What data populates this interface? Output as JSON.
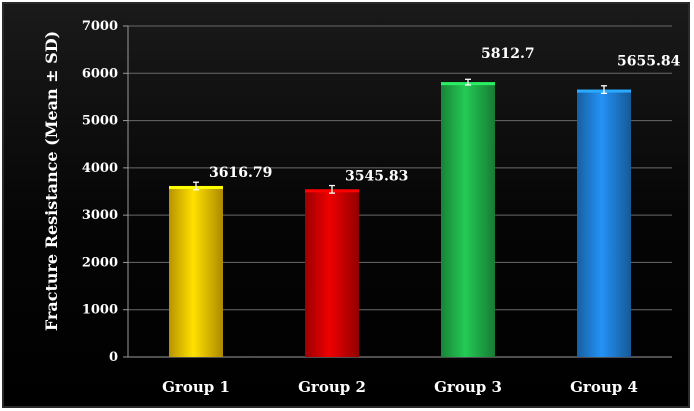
{
  "chart_data": {
    "type": "bar",
    "title": "",
    "xlabel": "",
    "ylabel": "Fracture Resistance (Mean ± SD)",
    "categories": [
      "Group 1",
      "Group 2",
      "Group 3",
      "Group 4"
    ],
    "values": [
      3616.79,
      3545.83,
      5812.7,
      5655.84
    ],
    "data_labels": [
      "3616.79",
      "3545.83",
      "5812.7",
      "5655.84"
    ],
    "error": [
      80,
      80,
      60,
      80
    ],
    "colors": [
      "#f5c400",
      "#d00000",
      "#1fb04a",
      "#1f7fd6"
    ],
    "ylim": [
      0,
      7000
    ],
    "yticks": [
      0,
      1000,
      2000,
      3000,
      4000,
      5000,
      6000,
      7000
    ],
    "ytick_labels": [
      "0",
      "1000",
      "2000",
      "3000",
      "4000",
      "5000",
      "6000",
      "7000"
    ],
    "grid": true,
    "legend": "none",
    "background": "#000000"
  }
}
